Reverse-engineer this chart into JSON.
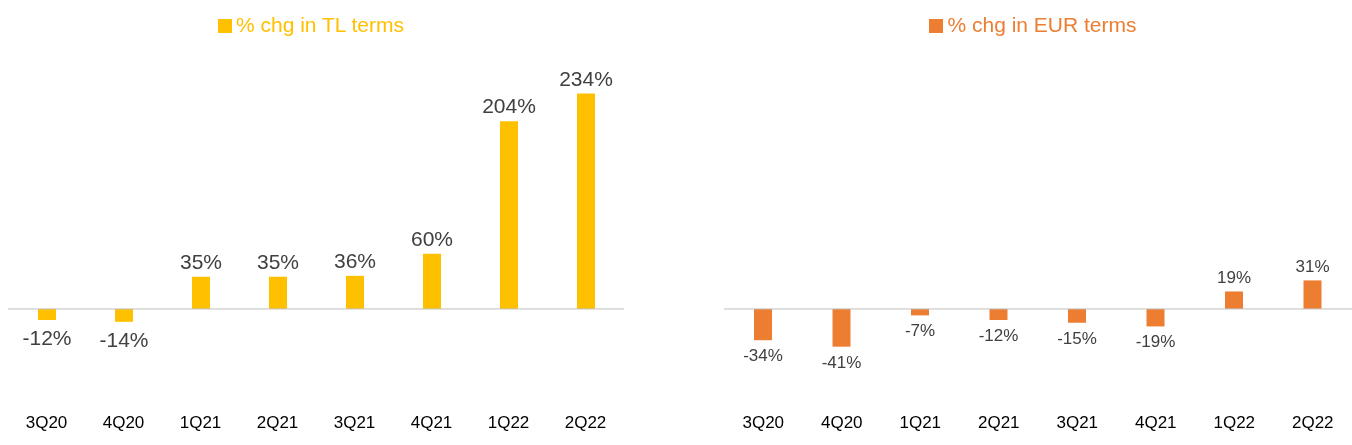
{
  "chart_data": [
    {
      "type": "bar",
      "categories": [
        "3Q20",
        "4Q20",
        "1Q21",
        "2Q21",
        "3Q21",
        "4Q21",
        "1Q22",
        "2Q22"
      ],
      "series": [
        {
          "name": "% chg in TL terms",
          "color": "#ffc000",
          "values": [
            -12,
            -14,
            35,
            35,
            36,
            60,
            204,
            234
          ],
          "value_labels": [
            "-12%",
            "-14%",
            "35%",
            "35%",
            "36%",
            "60%",
            "204%",
            "234%"
          ]
        }
      ],
      "legend": "top",
      "tick_labels": "x",
      "grid": false
    },
    {
      "type": "bar",
      "categories": [
        "3Q20",
        "4Q20",
        "1Q21",
        "2Q21",
        "3Q21",
        "4Q21",
        "1Q22",
        "2Q22"
      ],
      "series": [
        {
          "name": "% chg in EUR terms",
          "color": "#ed7d31",
          "values": [
            -34,
            -41,
            -7,
            -12,
            -15,
            -19,
            19,
            31
          ],
          "value_labels": [
            "-34%",
            "-41%",
            "-7%",
            "-12%",
            "-15%",
            "-19%",
            "19%",
            "31%"
          ]
        }
      ],
      "legend": "top",
      "tick_labels": "x",
      "grid": false
    }
  ]
}
